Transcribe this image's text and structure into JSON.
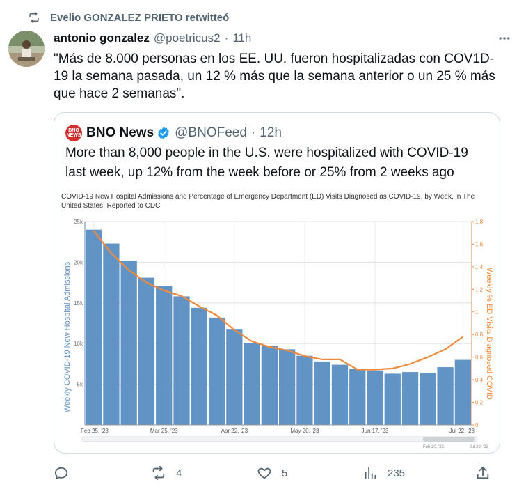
{
  "retweet": {
    "label": "Evelio GONZALEZ PRIETO retwitteó"
  },
  "tweet": {
    "author_name": "antonio gonzalez",
    "handle": "@poetricus2",
    "separator": "·",
    "time": "11h",
    "text": "\"Más de 8.000 personas en los EE. UU. fueron hospitalizadas con COV1D-19 la semana pasada, un 12 % más que la semana anterior o un 25 % más que hace 2 semanas\"."
  },
  "quote": {
    "name": "BNO News",
    "logo_text": "BNO NEWS",
    "handle": "@BNOFeed",
    "separator": "·",
    "time": "12h",
    "text": "More than 8,000 people in the U.S. were hospitalized with COVID-19 last week, up 12% from the week before or 25% from 2 weeks ago"
  },
  "actions": {
    "replies": "",
    "retweets": "4",
    "likes": "5",
    "views": "235"
  },
  "icons": [
    "retweet-icon",
    "more-icon",
    "verified-icon",
    "reply-icon",
    "like-icon",
    "views-icon",
    "share-icon"
  ],
  "colors": {
    "bar": "#6194c4",
    "line": "#f08a3c",
    "left_axis": "#5b8ec4",
    "right_axis": "#f08a3c",
    "verified": "#1d9bf0",
    "bno": "#d32f2f"
  },
  "chart_data": {
    "type": "bar",
    "title": "COVID-19 New Hospital Admissions and Percentage of Emergency Department (ED) Visits Diagnosed as COVID-19, by Week, in The United States, Reported to CDC",
    "ylabel": "Weekly COVID-19 New Hospital Admissions",
    "y2label": "Weekly % ED Visits Diagnosed COVID",
    "ylim": [
      0,
      25000
    ],
    "y2lim": [
      0,
      1.8
    ],
    "yticks": [
      "25k",
      "20k",
      "15k",
      "10k",
      "5k"
    ],
    "y2ticks": [
      "1.8",
      "1.6",
      "1.4",
      "1.2",
      "1",
      "0.8",
      "0.6",
      "0.4",
      "0.2",
      "0"
    ],
    "xticks": [
      "Feb 25, '23",
      "Mar 25, '23",
      "Apr 22, '23",
      "May 20, '23",
      "Jun 17, '23",
      "Jul 22, '23"
    ],
    "xtick_index": [
      0,
      4,
      8,
      12,
      16,
      21
    ],
    "range_labels": [
      "Feb 20, '23",
      "Jul 22, '23"
    ],
    "series": [
      {
        "type": "bar",
        "values": [
          24000,
          22300,
          20200,
          18100,
          17100,
          15800,
          14400,
          13200,
          11800,
          10100,
          9700,
          9300,
          8500,
          7800,
          7400,
          6900,
          6700,
          6300,
          6500,
          6400,
          7100,
          8000
        ]
      },
      {
        "type": "line",
        "axis": "right",
        "values": [
          1.72,
          1.52,
          1.37,
          1.26,
          1.19,
          1.14,
          1.05,
          0.97,
          0.84,
          0.74,
          0.69,
          0.66,
          0.61,
          0.58,
          0.58,
          0.49,
          0.49,
          0.5,
          0.54,
          0.6,
          0.67,
          0.78
        ]
      }
    ]
  }
}
